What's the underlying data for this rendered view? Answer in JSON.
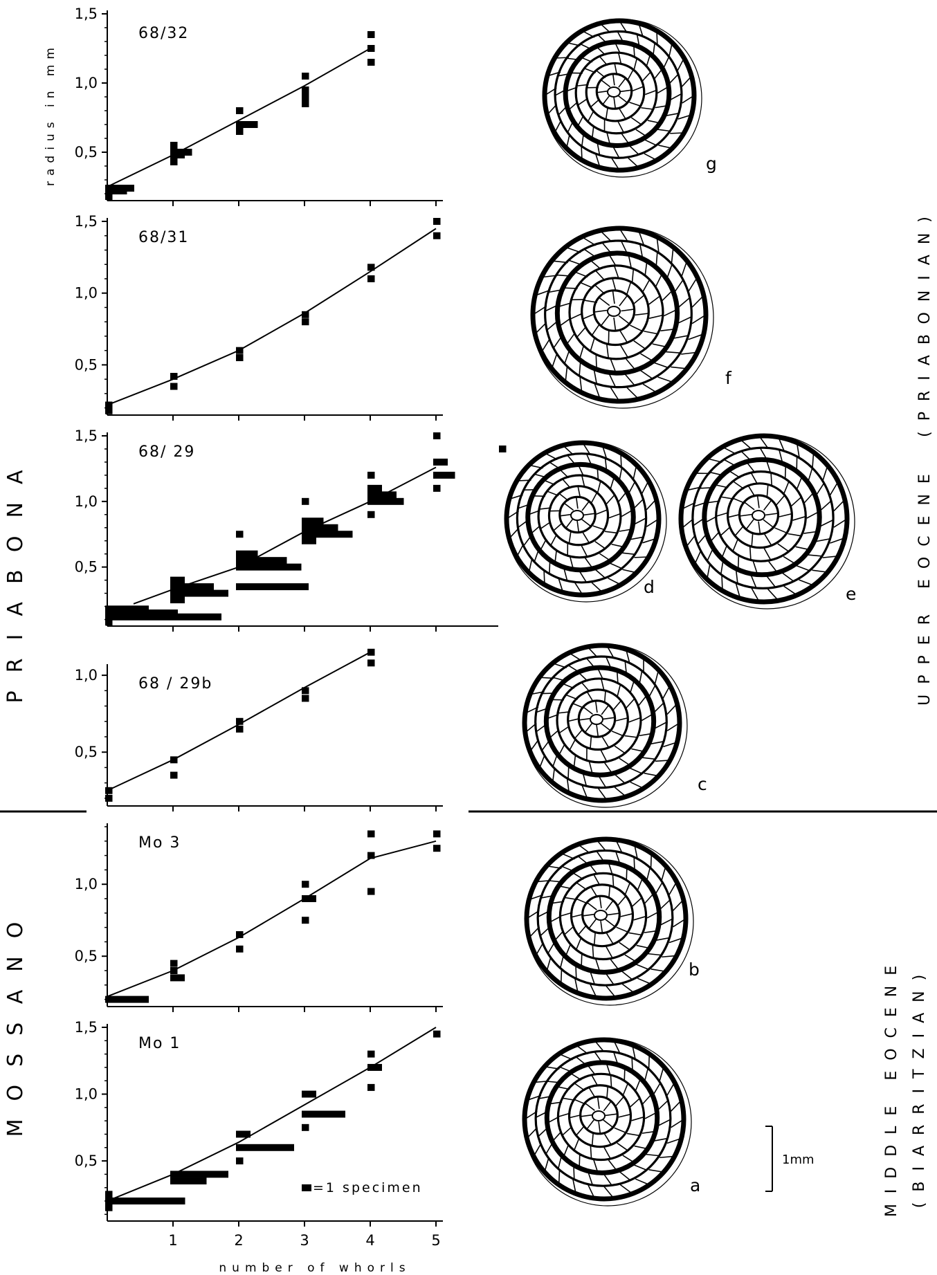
{
  "labels": {
    "ylabel": "radius in mm",
    "xlabel": "number of whorls",
    "legend": "=1 specimen",
    "scale_bar": "1mm",
    "localities": [
      "PRIABONA",
      "MOSSANO"
    ],
    "stratigraphy": [
      {
        "age": "UPPER EOCENE",
        "stage": "(PRIABONIAN)"
      },
      {
        "age": "MIDDLE EOCENE",
        "stage": "(BIARRITZIAN)"
      }
    ],
    "specimen_letters": [
      "g",
      "f",
      "d",
      "e",
      "c",
      "b",
      "a"
    ]
  },
  "chart_data": [
    {
      "type": "scatter",
      "title": "68/32",
      "xlabel": "number of whorls",
      "ylabel": "radius in mm",
      "xlim": [
        0,
        5
      ],
      "ylim": [
        0.15,
        1.5
      ],
      "yticks": [
        "1,5",
        "1,0",
        "0,5"
      ],
      "points": [
        [
          0.05,
          0.19
        ],
        [
          0.1,
          0.21
        ],
        [
          0.2,
          0.24
        ],
        [
          1.05,
          0.42
        ],
        [
          1.1,
          0.48
        ],
        [
          1.2,
          0.54
        ],
        [
          2.05,
          0.67
        ],
        [
          2.1,
          0.72
        ],
        [
          2.15,
          0.78
        ],
        [
          3.0,
          0.85
        ],
        [
          3.05,
          0.9
        ],
        [
          3.1,
          1.0
        ],
        [
          4.0,
          1.15
        ],
        [
          4.05,
          1.22
        ],
        [
          4.1,
          1.35
        ]
      ],
      "histograms": [
        {
          "x": 0,
          "bins": [
            {
              "y": 0.18,
              "n": 1
            },
            {
              "y": 0.22,
              "n": 3
            },
            {
              "y": 0.24,
              "n": 4
            }
          ]
        },
        {
          "x": 1,
          "bins": [
            {
              "y": 0.43,
              "n": 1
            },
            {
              "y": 0.48,
              "n": 2
            },
            {
              "y": 0.5,
              "n": 3
            },
            {
              "y": 0.55,
              "n": 1
            }
          ]
        },
        {
          "x": 2,
          "bins": [
            {
              "y": 0.65,
              "n": 1
            },
            {
              "y": 0.7,
              "n": 3
            },
            {
              "y": 0.8,
              "n": 1
            }
          ]
        },
        {
          "x": 3,
          "bins": [
            {
              "y": 0.85,
              "n": 1
            },
            {
              "y": 0.9,
              "n": 1
            },
            {
              "y": 0.95,
              "n": 1
            },
            {
              "y": 1.05,
              "n": 1
            }
          ]
        },
        {
          "x": 4,
          "bins": [
            {
              "y": 1.15,
              "n": 1
            },
            {
              "y": 1.25,
              "n": 1
            },
            {
              "y": 1.35,
              "n": 0
            }
          ]
        }
      ],
      "line": [
        [
          0,
          0.25
        ],
        [
          1,
          0.48
        ],
        [
          2,
          0.73
        ],
        [
          3,
          0.98
        ],
        [
          4,
          1.25
        ]
      ]
    },
    {
      "type": "scatter",
      "title": "68/31",
      "xlabel": "number of whorls",
      "ylabel": "radius in mm",
      "xlim": [
        0,
        5
      ],
      "ylim": [
        0.15,
        1.5
      ],
      "yticks": [
        "1,5",
        "1,0",
        "0,5"
      ],
      "histograms": [
        {
          "x": 0,
          "bins": [
            {
              "y": 0.18,
              "n": 0
            },
            {
              "y": 0.2,
              "n": 1
            },
            {
              "y": 0.22,
              "n": 0
            }
          ]
        },
        {
          "x": 1,
          "bins": [
            {
              "y": 0.35,
              "n": 1
            },
            {
              "y": 0.42,
              "n": 0
            }
          ]
        },
        {
          "x": 2,
          "bins": [
            {
              "y": 0.55,
              "n": 1
            },
            {
              "y": 0.6,
              "n": 0
            }
          ]
        },
        {
          "x": 3,
          "bins": [
            {
              "y": 0.8,
              "n": 0
            },
            {
              "y": 0.85,
              "n": 1
            }
          ]
        },
        {
          "x": 4,
          "bins": [
            {
              "y": 1.1,
              "n": 1
            },
            {
              "y": 1.18,
              "n": 0
            }
          ]
        },
        {
          "x": 5,
          "bins": [
            {
              "y": 1.4,
              "n": 1
            },
            {
              "y": 1.5,
              "n": 0
            }
          ]
        }
      ],
      "line": [
        [
          0,
          0.22
        ],
        [
          1,
          0.4
        ],
        [
          2,
          0.6
        ],
        [
          3,
          0.86
        ],
        [
          4,
          1.15
        ],
        [
          5,
          1.45
        ]
      ]
    },
    {
      "type": "scatter",
      "title": "68/ 29",
      "xlabel": "number of whorls",
      "ylabel": "radius in mm",
      "xlim": [
        0,
        6
      ],
      "ylim": [
        0.05,
        1.5
      ],
      "yticks": [
        "1,5",
        "1,0",
        "0,5"
      ],
      "histograms": [
        {
          "x": 0,
          "bins": [
            {
              "y": 0.08,
              "n": 1
            },
            {
              "y": 0.12,
              "n": 16
            },
            {
              "y": 0.15,
              "n": 10
            },
            {
              "y": 0.18,
              "n": 6
            }
          ]
        },
        {
          "x": 1,
          "bins": [
            {
              "y": 0.25,
              "n": 2
            },
            {
              "y": 0.3,
              "n": 8
            },
            {
              "y": 0.35,
              "n": 6
            },
            {
              "y": 0.4,
              "n": 2
            }
          ]
        },
        {
          "x": 2,
          "bins": [
            {
              "y": 0.35,
              "n": 10
            },
            {
              "y": 0.5,
              "n": 9
            },
            {
              "y": 0.55,
              "n": 7
            },
            {
              "y": 0.6,
              "n": 3
            },
            {
              "y": 0.75,
              "n": 0
            }
          ]
        },
        {
          "x": 3,
          "bins": [
            {
              "y": 0.7,
              "n": 2
            },
            {
              "y": 0.75,
              "n": 7
            },
            {
              "y": 0.8,
              "n": 5
            },
            {
              "y": 0.85,
              "n": 3
            },
            {
              "y": 1.0,
              "n": 0
            }
          ]
        },
        {
          "x": 4,
          "bins": [
            {
              "y": 0.9,
              "n": 1
            },
            {
              "y": 1.0,
              "n": 5
            },
            {
              "y": 1.05,
              "n": 4
            },
            {
              "y": 1.1,
              "n": 2
            },
            {
              "y": 1.2,
              "n": 0
            }
          ]
        },
        {
          "x": 5,
          "bins": [
            {
              "y": 1.1,
              "n": 1
            },
            {
              "y": 1.2,
              "n": 3
            },
            {
              "y": 1.3,
              "n": 2
            },
            {
              "y": 1.5,
              "n": 0
            }
          ]
        },
        {
          "x": 6,
          "bins": [
            {
              "y": 1.4,
              "n": 0
            }
          ]
        }
      ],
      "line": [
        [
          0.4,
          0.22
        ],
        [
          1,
          0.33
        ],
        [
          2,
          0.5
        ],
        [
          3,
          0.77
        ],
        [
          4,
          1.0
        ],
        [
          5,
          1.26
        ]
      ]
    },
    {
      "type": "scatter",
      "title": "68 / 29b",
      "xlabel": "number of whorls",
      "ylabel": "radius in mm",
      "xlim": [
        0,
        5
      ],
      "ylim": [
        0.15,
        1.05
      ],
      "yticks": [
        "1,0",
        "0,5"
      ],
      "histograms": [
        {
          "x": 0,
          "bins": [
            {
              "y": 0.2,
              "n": 1
            },
            {
              "y": 0.25,
              "n": 0
            }
          ]
        },
        {
          "x": 1,
          "bins": [
            {
              "y": 0.35,
              "n": 0
            },
            {
              "y": 0.45,
              "n": 1
            }
          ]
        },
        {
          "x": 2,
          "bins": [
            {
              "y": 0.65,
              "n": 0
            },
            {
              "y": 0.7,
              "n": 1
            }
          ]
        },
        {
          "x": 3,
          "bins": [
            {
              "y": 0.85,
              "n": 1
            },
            {
              "y": 0.9,
              "n": 0
            }
          ]
        },
        {
          "x": 4,
          "bins": [
            {
              "y": 1.08,
              "n": 1
            },
            {
              "y": 1.15,
              "n": 0
            }
          ]
        }
      ],
      "line": [
        [
          0,
          0.25
        ],
        [
          1,
          0.45
        ],
        [
          2,
          0.68
        ],
        [
          3,
          0.92
        ],
        [
          4,
          1.15
        ]
      ]
    },
    {
      "type": "scatter",
      "title": "Mo 3",
      "xlabel": "number of whorls",
      "ylabel": "radius in mm",
      "xlim": [
        0,
        5
      ],
      "ylim": [
        0.15,
        1.4
      ],
      "yticks": [
        "1,0",
        "0,5"
      ],
      "histograms": [
        {
          "x": 0,
          "bins": [
            {
              "y": 0.2,
              "n": 6
            }
          ]
        },
        {
          "x": 1,
          "bins": [
            {
              "y": 0.35,
              "n": 2
            },
            {
              "y": 0.4,
              "n": 1
            },
            {
              "y": 0.45,
              "n": 0
            }
          ]
        },
        {
          "x": 2,
          "bins": [
            {
              "y": 0.55,
              "n": 0
            },
            {
              "y": 0.65,
              "n": 1
            }
          ]
        },
        {
          "x": 3,
          "bins": [
            {
              "y": 0.75,
              "n": 0
            },
            {
              "y": 0.9,
              "n": 2
            },
            {
              "y": 1.0,
              "n": 0
            }
          ]
        },
        {
          "x": 4,
          "bins": [
            {
              "y": 0.95,
              "n": 0
            },
            {
              "y": 1.2,
              "n": 1
            },
            {
              "y": 1.35,
              "n": 0
            }
          ]
        },
        {
          "x": 5,
          "bins": [
            {
              "y": 1.25,
              "n": 0
            },
            {
              "y": 1.35,
              "n": 0
            }
          ]
        }
      ],
      "line": [
        [
          0,
          0.22
        ],
        [
          1,
          0.4
        ],
        [
          2,
          0.63
        ],
        [
          3,
          0.9
        ],
        [
          4,
          1.18
        ],
        [
          5,
          1.3
        ]
      ]
    },
    {
      "type": "scatter",
      "title": "Mo 1",
      "xlabel": "number of whorls",
      "ylabel": "radius in mm",
      "xlim": [
        0,
        5
      ],
      "ylim": [
        0.05,
        1.5
      ],
      "yticks": [
        "1,5",
        "1,0",
        "0,5"
      ],
      "xticks": [
        "1",
        "2",
        "3",
        "4",
        "5"
      ],
      "histograms": [
        {
          "x": 0,
          "bins": [
            {
              "y": 0.15,
              "n": 1
            },
            {
              "y": 0.2,
              "n": 11
            },
            {
              "y": 0.25,
              "n": 0
            }
          ]
        },
        {
          "x": 1,
          "bins": [
            {
              "y": 0.35,
              "n": 5
            },
            {
              "y": 0.4,
              "n": 8
            }
          ]
        },
        {
          "x": 2,
          "bins": [
            {
              "y": 0.5,
              "n": 0
            },
            {
              "y": 0.6,
              "n": 8
            },
            {
              "y": 0.7,
              "n": 2
            }
          ]
        },
        {
          "x": 3,
          "bins": [
            {
              "y": 0.75,
              "n": 0
            },
            {
              "y": 0.85,
              "n": 6
            },
            {
              "y": 1.0,
              "n": 2
            }
          ]
        },
        {
          "x": 4,
          "bins": [
            {
              "y": 1.05,
              "n": 0
            },
            {
              "y": 1.2,
              "n": 2
            },
            {
              "y": 1.3,
              "n": 1
            }
          ]
        },
        {
          "x": 5,
          "bins": [
            {
              "y": 1.45,
              "n": 0
            }
          ]
        }
      ],
      "line": [
        [
          0,
          0.2
        ],
        [
          1,
          0.4
        ],
        [
          2,
          0.64
        ],
        [
          3,
          0.92
        ],
        [
          4,
          1.2
        ],
        [
          5,
          1.5
        ]
      ]
    }
  ]
}
